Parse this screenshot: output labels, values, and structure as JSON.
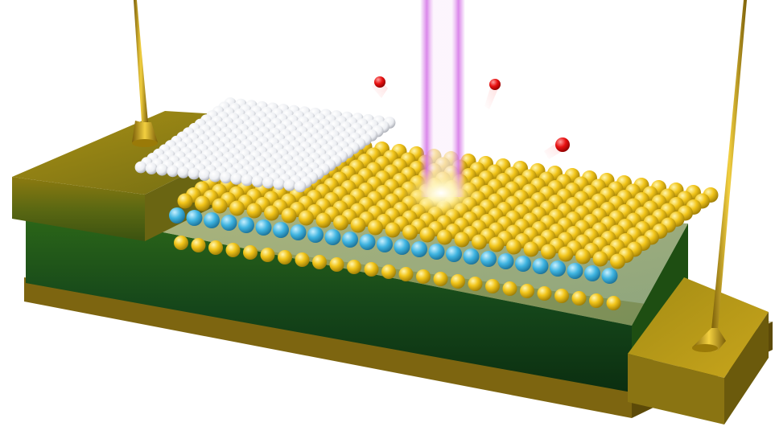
{
  "scene": {
    "description_type": "3d-render",
    "colors": {
      "background": "#ffffff",
      "substrate_dark": "#0f3d10",
      "substrate_mid": "#2f5f12",
      "substrate_light": "#8f8a10",
      "electrode_gold": "#b89a1a",
      "atom_gold": "#f0c418",
      "atom_blue": "#3fb4e0",
      "atom_white": "#f4f4f6",
      "emitted_particle": "#e81010",
      "beam": "#e6a8f0"
    },
    "icons": [
      "left-probe-tip-icon",
      "right-probe-tip-icon",
      "light-beam-icon",
      "emitted-particle-icon"
    ]
  }
}
